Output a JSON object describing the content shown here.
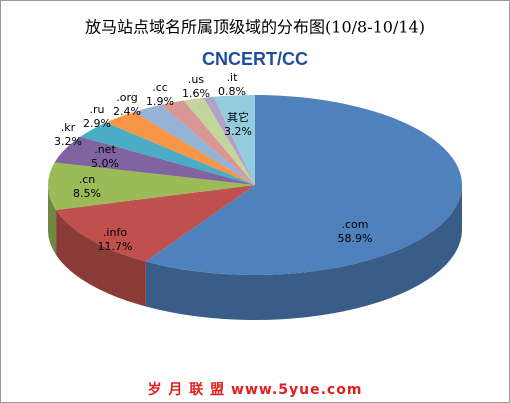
{
  "chart_data": {
    "type": "pie",
    "title": "放马站点域名所属顶级域的分布图(10/8-10/14)",
    "logo": "CNCERT/CC",
    "watermark": "岁 月 联 盟  www.5yue.com",
    "categories": [
      ".com",
      ".info",
      ".cn",
      ".net",
      ".kr",
      ".ru",
      ".org",
      ".cc",
      ".us",
      ".it",
      "其它"
    ],
    "values": [
      58.9,
      11.7,
      8.5,
      5.0,
      3.2,
      2.9,
      2.4,
      1.9,
      1.6,
      0.8,
      3.2
    ],
    "value_labels": [
      "58.9%",
      "11.7%",
      "8.5%",
      "5.0%",
      "3.2%",
      "2.9%",
      "2.4%",
      "1.9%",
      "1.6%",
      "0.8%",
      "3.2%"
    ],
    "colors": [
      "#4f81bd",
      "#c0504d",
      "#9bbb59",
      "#8064a2",
      "#4bacc6",
      "#f79646",
      "#95b3d7",
      "#d99694",
      "#c3d69b",
      "#b3a2c7",
      "#93cddd"
    ]
  }
}
